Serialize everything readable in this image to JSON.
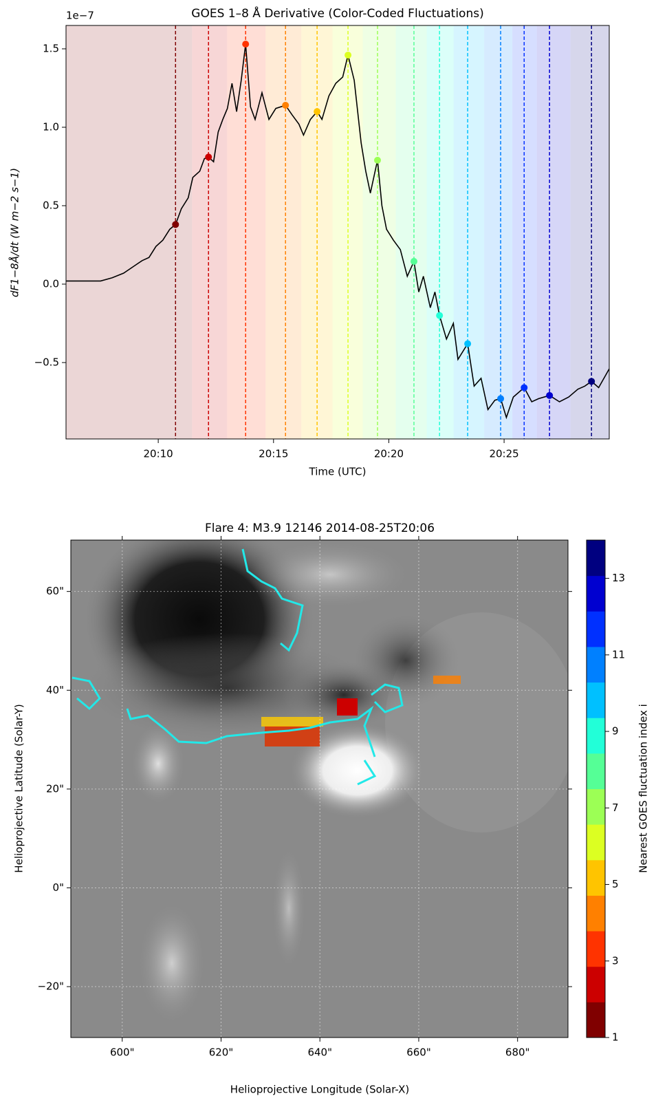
{
  "chart_data": [
    {
      "type": "line",
      "title": "GOES 1–8 Å Derivative (Color-Coded Fluctuations)",
      "xlabel": "Time (UTC)",
      "ylabel": "dF1−8Å/dt (W m−2 s−1)",
      "offset_label": "1e−7",
      "color": "#000000",
      "x": [
        6.0,
        7.0,
        7.5,
        8.0,
        8.5,
        9.0,
        9.3,
        9.6,
        9.9,
        10.2,
        10.5,
        10.75,
        11.0,
        11.3,
        11.5,
        11.8,
        12.0,
        12.18,
        12.4,
        12.6,
        12.8,
        13.0,
        13.2,
        13.4,
        13.6,
        13.79,
        14.0,
        14.2,
        14.5,
        14.8,
        15.1,
        15.52,
        15.8,
        16.1,
        16.3,
        16.6,
        16.89,
        17.1,
        17.4,
        17.7,
        18.0,
        18.23,
        18.5,
        18.8,
        19.0,
        19.2,
        19.51,
        19.7,
        19.9,
        20.2,
        20.5,
        20.8,
        21.09,
        21.3,
        21.5,
        21.8,
        22.0,
        22.2,
        22.5,
        22.8,
        23.0,
        23.42,
        23.7,
        24.0,
        24.3,
        24.6,
        24.85,
        25.1,
        25.4,
        25.87,
        26.2,
        26.5,
        26.97,
        27.4,
        27.8,
        28.2,
        28.5,
        28.79,
        29.1,
        29.56
      ],
      "values": [
        0.02,
        0.02,
        0.02,
        0.04,
        0.07,
        0.12,
        0.15,
        0.17,
        0.24,
        0.28,
        0.35,
        0.38,
        0.48,
        0.55,
        0.68,
        0.72,
        0.8,
        0.81,
        0.78,
        0.97,
        1.05,
        1.12,
        1.28,
        1.1,
        1.3,
        1.53,
        1.13,
        1.05,
        1.22,
        1.05,
        1.12,
        1.14,
        1.08,
        1.02,
        0.95,
        1.05,
        1.1,
        1.05,
        1.2,
        1.28,
        1.32,
        1.46,
        1.3,
        0.9,
        0.72,
        0.58,
        0.79,
        0.5,
        0.35,
        0.28,
        0.22,
        0.05,
        0.145,
        -0.05,
        0.05,
        -0.15,
        -0.05,
        -0.2,
        -0.35,
        -0.25,
        -0.48,
        -0.38,
        -0.65,
        -0.6,
        -0.8,
        -0.74,
        -0.73,
        -0.85,
        -0.72,
        -0.66,
        -0.75,
        -0.73,
        -0.71,
        -0.75,
        -0.72,
        -0.67,
        -0.65,
        -0.62,
        -0.66,
        -0.54
      ],
      "points": {
        "x": [
          10.75,
          12.18,
          13.79,
          15.52,
          16.89,
          18.23,
          19.51,
          21.09,
          22.2,
          23.42,
          24.85,
          25.87,
          26.97,
          28.79
        ],
        "values": [
          0.38,
          0.81,
          1.53,
          1.14,
          1.1,
          1.46,
          0.79,
          0.145,
          -0.2,
          -0.38,
          -0.73,
          -0.66,
          -0.71,
          -0.62
        ],
        "colors": [
          "#800000",
          "#cc0000",
          "#ff3300",
          "#ff8000",
          "#ffc400",
          "#dcff22",
          "#9cff55",
          "#55ff96",
          "#22ffd8",
          "#00c0ff",
          "#0080ff",
          "#0030ff",
          "#0000d0",
          "#000080"
        ]
      },
      "xlim": [
        6.0,
        29.56
      ],
      "xticks": [
        {
          "value": 10,
          "label": "20:10"
        },
        {
          "value": 15,
          "label": "20:15"
        },
        {
          "value": 20,
          "label": "20:20"
        },
        {
          "value": 25,
          "label": "20:25"
        }
      ],
      "ylim": [
        -0.987,
        1.649
      ],
      "yticks": [
        {
          "value": -0.5,
          "label": "−0.5"
        },
        {
          "value": 0,
          "label": "0.0"
        },
        0.5,
        {
          "value": 1,
          "label": "1.0"
        },
        1.5
      ]
    },
    {
      "type": "image",
      "title": "Flare 4: M3.9 12146 2014-08-25T20:06",
      "xlabel": "Helioprojective Longitude (Solar-X)",
      "ylabel": "Helioprojective Latitude (Solar-Y)",
      "xlim": [
        589.6,
        690.2
      ],
      "xticks": [
        {
          "value": 600,
          "label": "600\""
        },
        {
          "value": 620,
          "label": "620\""
        },
        {
          "value": 640,
          "label": "640\""
        },
        {
          "value": 660,
          "label": "660\""
        },
        {
          "value": 680,
          "label": "680\""
        }
      ],
      "ylim": [
        -30.3,
        70.4
      ],
      "yticks": [
        {
          "value": -20,
          "label": "−20\""
        },
        {
          "value": 0,
          "label": "0\""
        },
        {
          "value": 20,
          "label": "20\""
        },
        {
          "value": 40,
          "label": "40\""
        },
        {
          "value": 60,
          "label": "60\""
        }
      ],
      "grid": true,
      "colorbar": {
        "label": "Nearest GOES fluctuation index i",
        "lim": [
          1,
          14
        ],
        "ticks": [
          1,
          3,
          5,
          7,
          9,
          11,
          13
        ]
      }
    }
  ]
}
